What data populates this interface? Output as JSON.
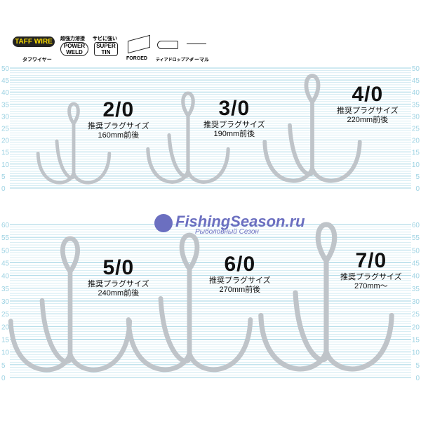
{
  "badges": {
    "taff_wire": "TAFF WIRE",
    "taff_wire_sub": "タフワイヤー",
    "power_weld_top": "超強力溶接",
    "power_weld": "POWER WELD",
    "super_tin_top": "サビに強い",
    "super_tin": "SUPER TIN",
    "forged": "FORGED",
    "teardrop_eye": "ティアドロップアイ",
    "normal": "ノーマル"
  },
  "top_scale": {
    "ticks": [
      "50",
      "45",
      "40",
      "35",
      "30",
      "25",
      "20",
      "15",
      "10",
      "5",
      "0"
    ]
  },
  "bottom_scale": {
    "ticks": [
      "60",
      "55",
      "50",
      "45",
      "40",
      "35",
      "30",
      "25",
      "20",
      "15",
      "10",
      "5",
      "0"
    ]
  },
  "hooks": [
    {
      "size": "2/0",
      "label": "推奨プラグサイズ",
      "plug": "160mm前後"
    },
    {
      "size": "3/0",
      "label": "推奨プラグサイズ",
      "plug": "190mm前後"
    },
    {
      "size": "4/0",
      "label": "推奨プラグサイズ",
      "plug": "220mm前後"
    },
    {
      "size": "5/0",
      "label": "推奨プラグサイズ",
      "plug": "240mm前後"
    },
    {
      "size": "6/0",
      "label": "推奨プラグサイズ",
      "plug": "270mm前後"
    },
    {
      "size": "7/0",
      "label": "推奨プラグサイズ",
      "plug": "270mm～"
    }
  ],
  "watermark": {
    "title": "FishingSeason.ru",
    "subtitle": "Рыболовный Сезон"
  },
  "colors": {
    "scale": "#9fd3e3",
    "hook": "#c8ccd0",
    "watermark": "#6b6fc0"
  }
}
